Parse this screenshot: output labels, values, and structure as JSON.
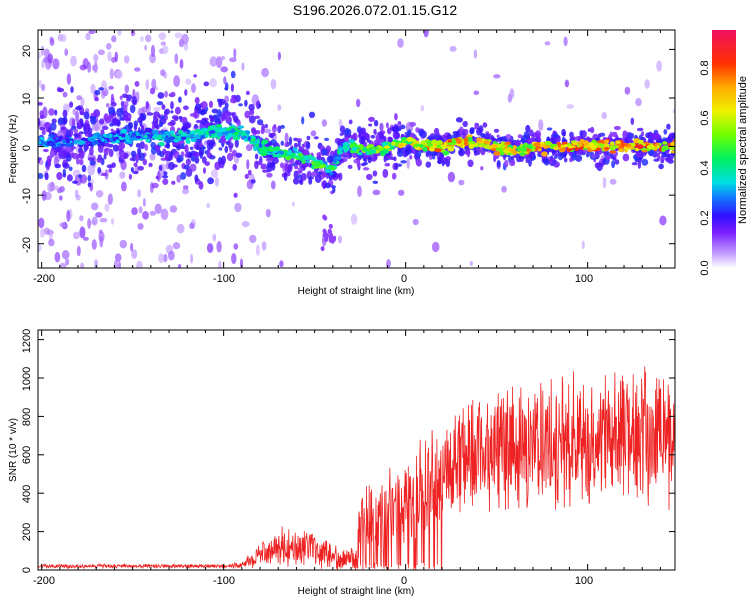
{
  "title": "S196.2026.072.01.15.G12",
  "chart_data": [
    {
      "type": "heatmap",
      "xlabel": "Height of straight line (km)",
      "ylabel": "Frequency (Hz)",
      "xlim": [
        -202,
        148
      ],
      "ylim": [
        -25,
        24
      ],
      "xticks": [
        -200,
        -100,
        0,
        100
      ],
      "yticks": [
        -20,
        -10,
        0,
        10,
        20
      ],
      "xtick_labels": [
        "-200",
        "-100",
        "0",
        "100"
      ],
      "ytick_labels": [
        "-20",
        "-10",
        "0",
        "10",
        "20"
      ],
      "colorbar": {
        "label": "Normalized spectral amplitude",
        "range": [
          0,
          0.95
        ],
        "ticks": [
          0,
          0.2,
          0.4,
          0.6,
          0.8
        ],
        "tick_labels": [
          "0.0",
          "0.2",
          "0.4",
          "0.6",
          "0.8"
        ]
      },
      "ridge": {
        "x": [
          -200,
          -180,
          -160,
          -140,
          -120,
          -100,
          -90,
          -80,
          -70,
          -60,
          -50,
          -40,
          -35,
          -30,
          -20,
          -10,
          0,
          10,
          20,
          30,
          40,
          50,
          60,
          70,
          80,
          90,
          100,
          110,
          120,
          130,
          140,
          148
        ],
        "y": [
          1,
          1,
          2,
          2,
          2,
          3,
          3,
          0,
          -1,
          -2,
          -3,
          -5,
          0,
          0,
          -1,
          0,
          1,
          0,
          0,
          1,
          1,
          0,
          -1,
          0,
          0,
          0,
          0,
          0,
          0,
          0,
          0,
          0
        ],
        "amplitude": [
          0.35,
          0.35,
          0.35,
          0.4,
          0.4,
          0.45,
          0.45,
          0.45,
          0.5,
          0.55,
          0.55,
          0.5,
          0.4,
          0.55,
          0.6,
          0.65,
          0.7,
          0.8,
          0.85,
          0.8,
          0.75,
          0.8,
          0.75,
          0.85,
          0.9,
          0.9,
          0.85,
          0.9,
          0.92,
          0.92,
          0.9,
          0.88
        ]
      }
    },
    {
      "type": "line",
      "xlabel": "Height of straight line (km)",
      "ylabel": "SNR (10 * v/v)",
      "xlim": [
        -202,
        148
      ],
      "ylim": [
        0,
        1250
      ],
      "xticks": [
        -200,
        -100,
        0,
        100
      ],
      "yticks": [
        0,
        200,
        400,
        600,
        800,
        1000,
        1200
      ],
      "xtick_labels": [
        "-200",
        "-100",
        "0",
        "100"
      ],
      "ytick_labels": [
        "0",
        "200",
        "400",
        "600",
        "800",
        "1000",
        "1200"
      ],
      "color": "#ee2222",
      "envelope": {
        "x": [
          -202,
          -100,
          -90,
          -80,
          -70,
          -60,
          -50,
          -40,
          -30,
          -27,
          -25,
          -20,
          -10,
          0,
          10,
          20,
          30,
          40,
          50,
          60,
          70,
          80,
          90,
          100,
          110,
          120,
          130,
          140,
          148
        ],
        "mean": [
          20,
          20,
          25,
          80,
          120,
          130,
          100,
          70,
          60,
          100,
          250,
          280,
          300,
          350,
          420,
          500,
          600,
          620,
          640,
          650,
          660,
          670,
          680,
          690,
          690,
          700,
          700,
          700,
          700
        ],
        "spread": [
          10,
          10,
          15,
          60,
          90,
          100,
          80,
          60,
          50,
          80,
          180,
          180,
          200,
          220,
          250,
          260,
          280,
          290,
          300,
          300,
          300,
          310,
          310,
          320,
          320,
          330,
          330,
          340,
          350
        ]
      }
    }
  ]
}
